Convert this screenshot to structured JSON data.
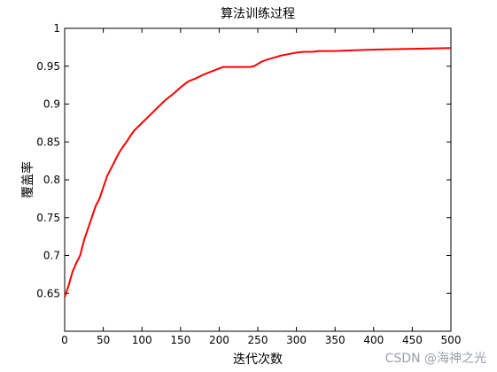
{
  "chart_data": {
    "type": "line",
    "title": "算法训练过程",
    "xlabel": "迭代次数",
    "ylabel": "覆盖率",
    "xlim": [
      0,
      500
    ],
    "ylim": [
      0.6,
      1.0
    ],
    "xticks": [
      "0",
      "50",
      "100",
      "150",
      "200",
      "250",
      "300",
      "350",
      "400",
      "450",
      "500"
    ],
    "yticks": [
      "0.65",
      "0.7",
      "0.75",
      "0.8",
      "0.85",
      "0.9",
      "0.95",
      "1"
    ],
    "grid": false,
    "line_color": "#ff0000",
    "series": [
      {
        "x": [
          0,
          5,
          10,
          15,
          20,
          25,
          30,
          35,
          40,
          45,
          50,
          55,
          60,
          65,
          70,
          75,
          80,
          85,
          90,
          95,
          100,
          110,
          120,
          125,
          130,
          140,
          150,
          160,
          170,
          180,
          190,
          200,
          205,
          210,
          220,
          230,
          240,
          245,
          250,
          255,
          260,
          270,
          280,
          290,
          300,
          310,
          320,
          330,
          340,
          350,
          375,
          400,
          450,
          500
        ],
        "y": [
          0.645,
          0.66,
          0.678,
          0.69,
          0.7,
          0.72,
          0.735,
          0.75,
          0.765,
          0.775,
          0.79,
          0.805,
          0.815,
          0.825,
          0.835,
          0.843,
          0.85,
          0.858,
          0.865,
          0.87,
          0.875,
          0.885,
          0.895,
          0.9,
          0.905,
          0.913,
          0.922,
          0.93,
          0.934,
          0.939,
          0.943,
          0.947,
          0.949,
          0.949,
          0.949,
          0.949,
          0.949,
          0.95,
          0.953,
          0.956,
          0.958,
          0.961,
          0.964,
          0.966,
          0.968,
          0.969,
          0.969,
          0.97,
          0.97,
          0.97,
          0.971,
          0.972,
          0.973,
          0.974
        ]
      }
    ]
  },
  "watermark": "CSDN @海神之光"
}
